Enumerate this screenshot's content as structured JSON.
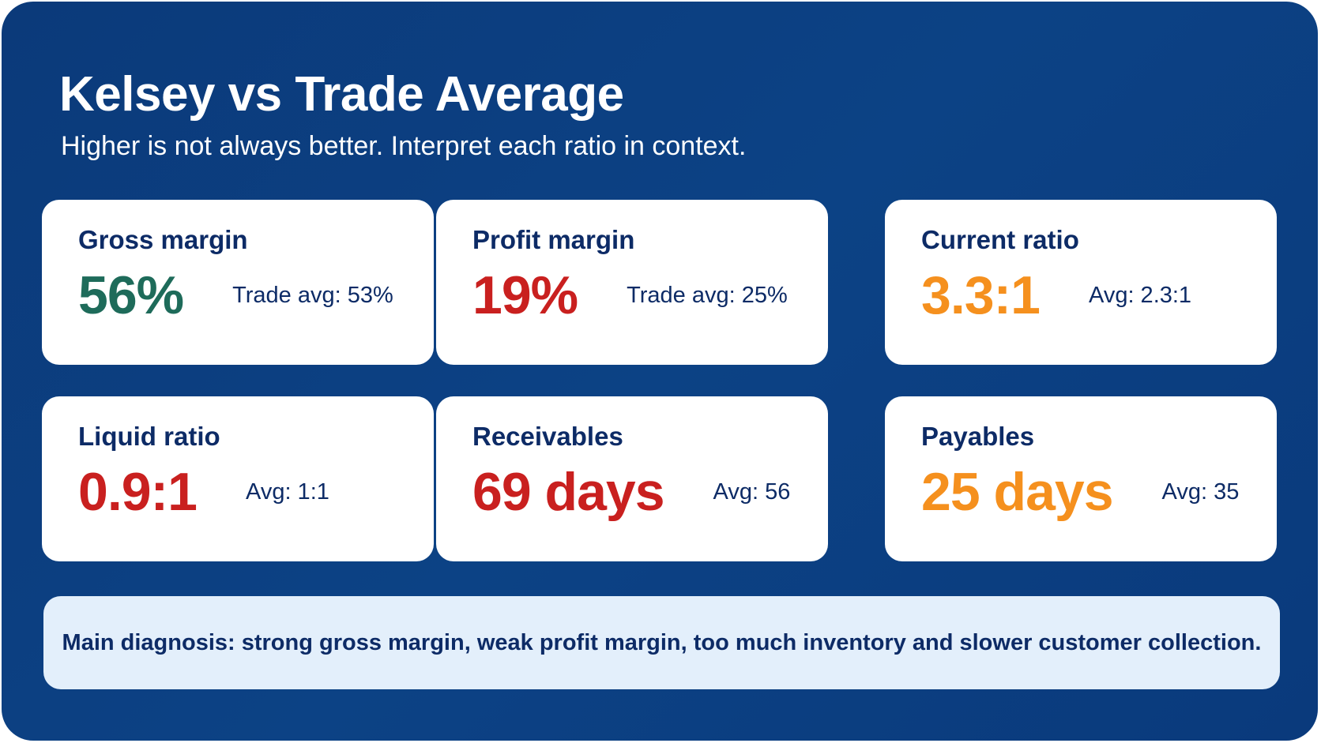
{
  "header": {
    "title": "Kelsey vs Trade Average",
    "subtitle": "Higher is not always better. Interpret each ratio in context."
  },
  "cards": [
    {
      "label": "Gross margin",
      "value": "56%",
      "comparison": "Trade avg: 53%",
      "color": "#1e6b5a"
    },
    {
      "label": "Profit margin",
      "value": "19%",
      "comparison": "Trade avg: 25%",
      "color": "#c9201f"
    },
    {
      "label": "Current ratio",
      "value": "3.3:1",
      "comparison": "Avg: 2.3:1",
      "color": "#f5901e"
    },
    {
      "label": "Liquid ratio",
      "value": "0.9:1",
      "comparison": "Avg: 1:1",
      "color": "#c9201f"
    },
    {
      "label": "Receivables",
      "value": "69 days",
      "comparison": "Avg: 56",
      "color": "#c9201f"
    },
    {
      "label": "Payables",
      "value": "25 days",
      "comparison": "Avg: 35",
      "color": "#f5901e"
    }
  ],
  "diagnosis": "Main diagnosis: strong gross margin, weak profit margin, too much inventory and slower customer collection."
}
